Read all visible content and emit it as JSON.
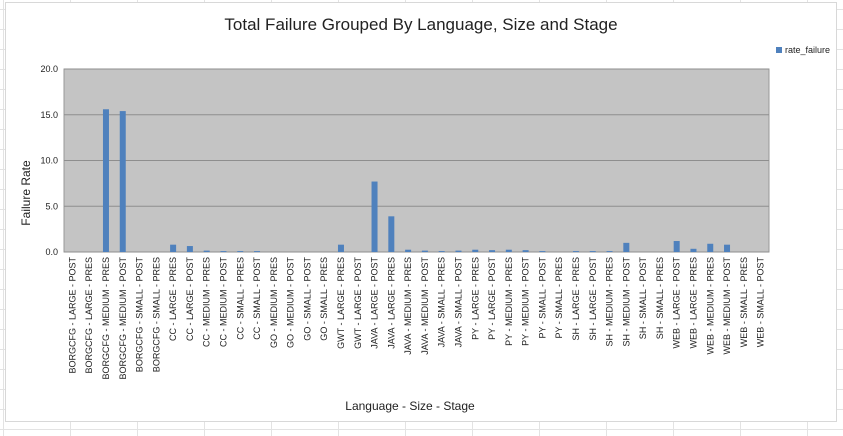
{
  "chart_data": {
    "type": "bar",
    "title": "Total Failure Grouped By Language, Size and Stage",
    "xlabel": "Language - Size - Stage",
    "ylabel": "Failure Rate",
    "ylim": [
      0,
      20
    ],
    "yticks": [
      "0.0",
      "5.0",
      "10.0",
      "15.0",
      "20.0"
    ],
    "grid": true,
    "legend_position": "top-right",
    "colors": {
      "bar": "#4f81bd",
      "plot_bg": "#c4c4c4",
      "gridline": "#8e8e8e"
    },
    "categories": [
      "BORGCFG - LARGE - POST",
      "BORGCFG - LARGE - PRES",
      "BORGCFG - MEDIUM - PRES",
      "BORGCFG - MEDIUM - POST",
      "BORGCFG - SMALL - POST",
      "BORGCFG - SMALL - PRES",
      "CC - LARGE - PRES",
      "CC - LARGE - POST",
      "CC - MEDIUM - PRES",
      "CC - MEDIUM - POST",
      "CC - SMALL - PRES",
      "CC - SMALL - POST",
      "GO - MEDIUM - PRES",
      "GO - MEDIUM - POST",
      "GO - SMALL - POST",
      "GO - SMALL - PRES",
      "GWT - LARGE - PRES",
      "GWT - LARGE - POST",
      "JAVA - LARGE - POST",
      "JAVA - LARGE - PRES",
      "JAVA - MEDIUM - PRES",
      "JAVA - MEDIUM - POST",
      "JAVA - SMALL - PRES",
      "JAVA - SMALL - POST",
      "PY - LARGE - PRES",
      "PY - LARGE - POST",
      "PY - MEDIUM - PRES",
      "PY - MEDIUM - POST",
      "PY - SMALL - POST",
      "PY - SMALL - PRES",
      "SH - LARGE - PRES",
      "SH - LARGE - POST",
      "SH - MEDIUM - PRES",
      "SH - MEDIUM - POST",
      "SH - SMALL - POST",
      "SH - SMALL - PRES",
      "WEB - LARGE - POST",
      "WEB - LARGE - PRES",
      "WEB - MEDIUM - PRES",
      "WEB - MEDIUM - POST",
      "WEB - SMALL - PRES",
      "WEB - SMALL - POST"
    ],
    "series": [
      {
        "name": "rate_failure",
        "values": [
          0,
          0,
          15.6,
          15.4,
          0,
          0,
          0.8,
          0.65,
          0.15,
          0.1,
          0.1,
          0.1,
          0,
          0,
          0,
          0,
          0.8,
          0,
          7.7,
          3.9,
          0.25,
          0.15,
          0.1,
          0.15,
          0.25,
          0.2,
          0.25,
          0.2,
          0.1,
          0,
          0.1,
          0.1,
          0.1,
          1.0,
          0,
          0,
          1.2,
          0.35,
          0.9,
          0.8,
          0,
          0
        ]
      }
    ]
  }
}
